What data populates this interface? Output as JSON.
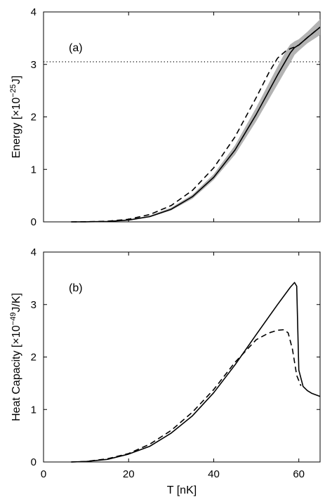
{
  "chart_data": [
    {
      "type": "line",
      "panel_label": "(a)",
      "ylabel": "Energy  [×10",
      "ylabel_exp": "−25",
      "ylabel_unit": "J]",
      "xlim": [
        0,
        65
      ],
      "ylim": [
        0,
        4
      ],
      "x_ticks": [
        "0",
        "20",
        "40",
        "60"
      ],
      "x_tick_values": [
        0,
        20,
        40,
        60
      ],
      "y_ticks": [
        "0",
        "1",
        "2",
        "3",
        "4"
      ],
      "y_tick_values": [
        0,
        1,
        2,
        3,
        4
      ],
      "show_x_tick_labels": false,
      "grid": false,
      "hline": 3.05,
      "series": [
        {
          "style": "band",
          "color": "#b3b3b3",
          "x": [
            6.5,
            10,
            15,
            20,
            25,
            30,
            35,
            40,
            45,
            50,
            53,
            55,
            57,
            58,
            59,
            60,
            62,
            65
          ],
          "lower": [
            0.0,
            0.0,
            0.005,
            0.03,
            0.09,
            0.22,
            0.44,
            0.8,
            1.28,
            1.92,
            2.34,
            2.62,
            2.9,
            3.03,
            3.18,
            3.26,
            3.4,
            3.56
          ],
          "upper": [
            0.0,
            0.0,
            0.01,
            0.045,
            0.12,
            0.27,
            0.52,
            0.91,
            1.46,
            2.18,
            2.65,
            2.96,
            3.26,
            3.38,
            3.44,
            3.48,
            3.62,
            3.86
          ]
        },
        {
          "style": "solid",
          "color": "#000000",
          "x": [
            6.5,
            10,
            15,
            20,
            25,
            30,
            35,
            40,
            45,
            50,
            53,
            55,
            57,
            58,
            59,
            60,
            62,
            65
          ],
          "y": [
            0.0,
            0.002,
            0.008,
            0.035,
            0.1,
            0.24,
            0.48,
            0.85,
            1.37,
            2.05,
            2.5,
            2.8,
            3.08,
            3.22,
            3.32,
            3.37,
            3.51,
            3.71
          ]
        },
        {
          "style": "dashed",
          "color": "#000000",
          "x": [
            6.5,
            10,
            15,
            20,
            25,
            30,
            35,
            40,
            45,
            50,
            53,
            55,
            57,
            58,
            59,
            60,
            62,
            65
          ],
          "y": [
            0.0,
            0.003,
            0.012,
            0.05,
            0.14,
            0.31,
            0.6,
            1.03,
            1.62,
            2.37,
            2.85,
            3.12,
            3.26,
            3.3,
            3.33,
            3.37,
            3.51,
            3.71
          ]
        }
      ]
    },
    {
      "type": "line",
      "panel_label": "(b)",
      "ylabel": "Heat Capacity  [×10",
      "ylabel_exp": "−49",
      "ylabel_unit": "J/K]",
      "xlabel": "T  [nK]",
      "xlim": [
        0,
        65
      ],
      "ylim": [
        0,
        4
      ],
      "x_ticks": [
        "0",
        "20",
        "40",
        "60"
      ],
      "x_tick_values": [
        0,
        20,
        40,
        60
      ],
      "y_ticks": [
        "0",
        "1",
        "2",
        "3",
        "4"
      ],
      "y_tick_values": [
        0,
        1,
        2,
        3,
        4
      ],
      "show_x_tick_labels": true,
      "grid": false,
      "series": [
        {
          "style": "solid",
          "color": "#000000",
          "x": [
            6.5,
            10,
            15,
            20,
            25,
            30,
            35,
            40,
            45,
            50,
            55,
            58,
            59,
            59.5,
            60,
            61,
            62,
            63,
            65
          ],
          "y": [
            0.0,
            0.01,
            0.05,
            0.15,
            0.3,
            0.55,
            0.88,
            1.32,
            1.85,
            2.43,
            3.0,
            3.33,
            3.42,
            3.35,
            1.75,
            1.44,
            1.36,
            1.31,
            1.25
          ]
        },
        {
          "style": "dashed",
          "color": "#000000",
          "x": [
            6.5,
            10,
            15,
            20,
            25,
            30,
            35,
            40,
            45,
            50,
            53,
            55,
            56.5,
            57.5,
            58.5,
            59.5,
            60.5
          ],
          "y": [
            0.0,
            0.01,
            0.06,
            0.16,
            0.34,
            0.6,
            0.95,
            1.38,
            1.9,
            2.33,
            2.46,
            2.51,
            2.52,
            2.46,
            2.15,
            1.65,
            1.45
          ]
        }
      ]
    }
  ]
}
